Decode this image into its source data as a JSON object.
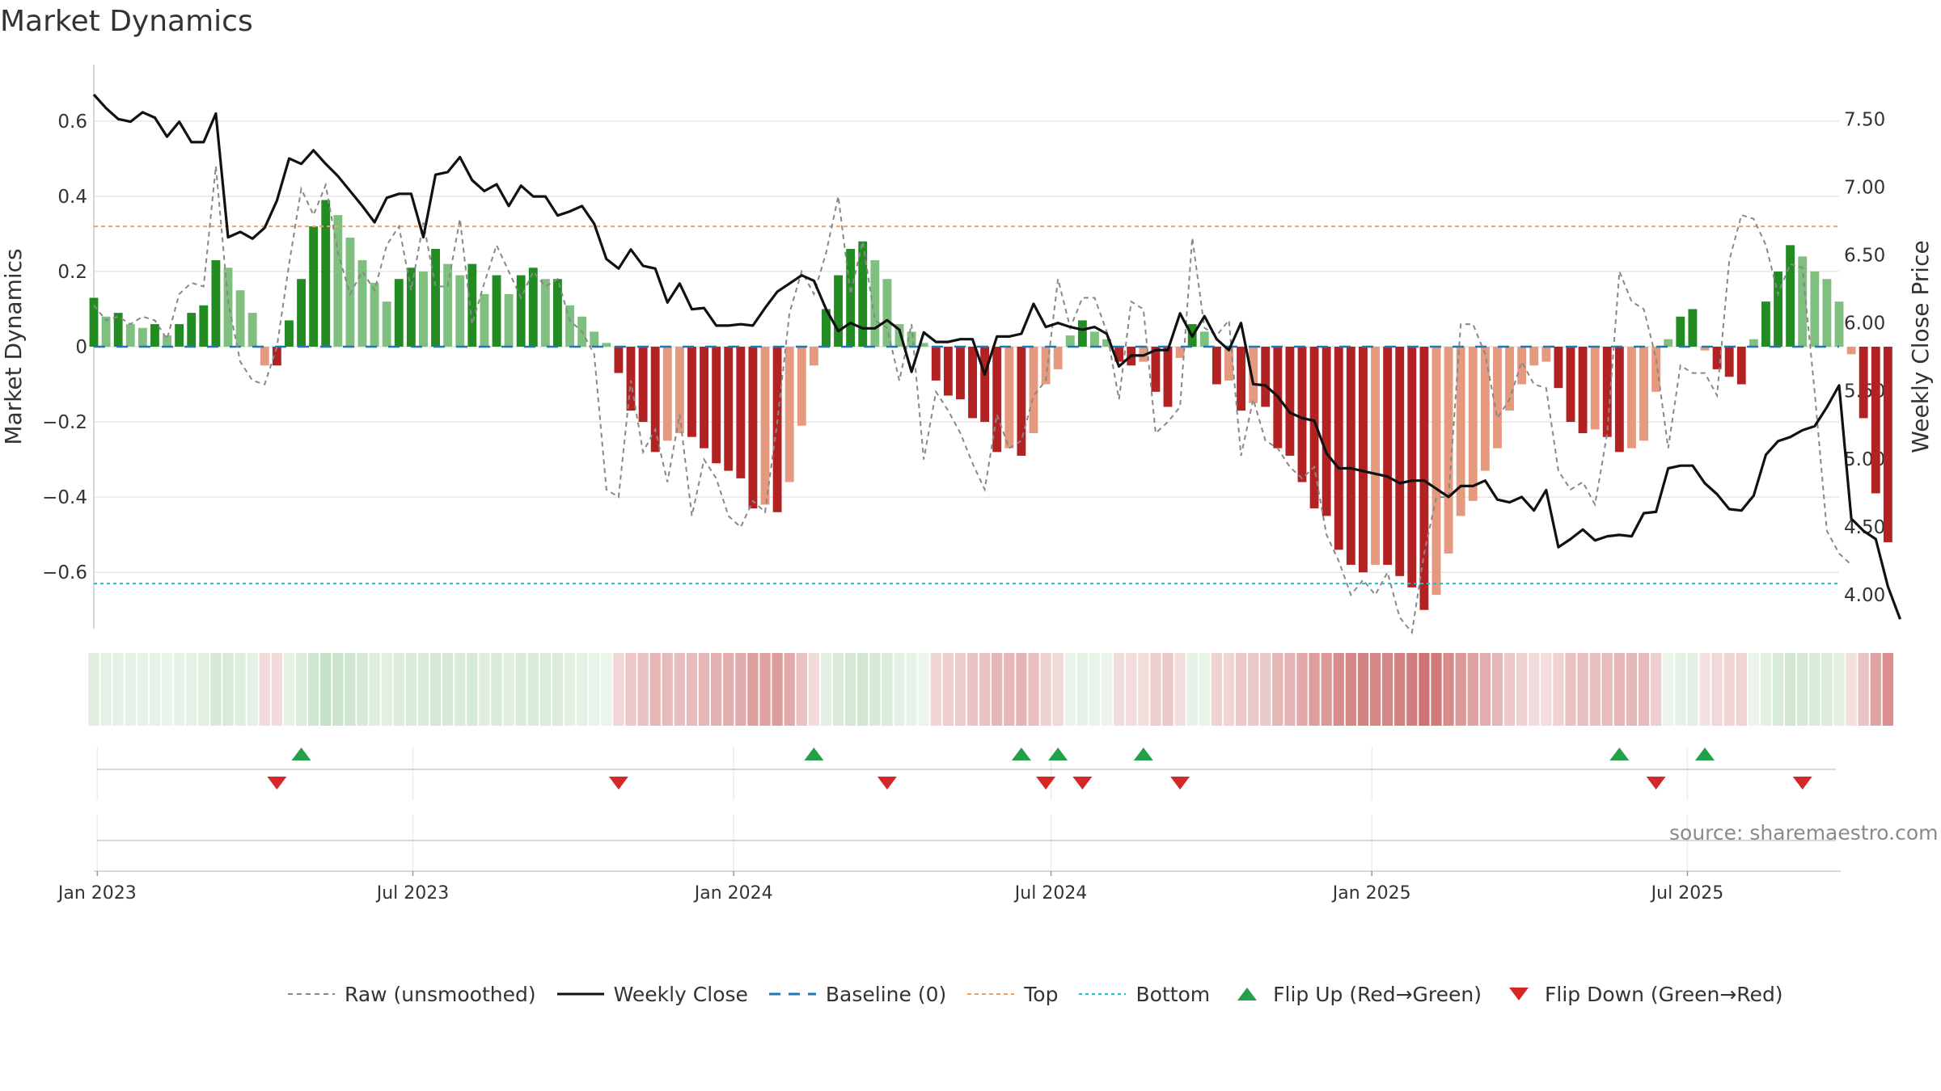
{
  "title": "Market Dynamics",
  "source": "source: sharemaestro.com",
  "legend": [
    {
      "key": "raw",
      "label": "Raw (unsmoothed)",
      "color": "#888888"
    },
    {
      "key": "close",
      "label": "Weekly Close",
      "color": "#111111"
    },
    {
      "key": "baseline",
      "label": "Baseline (0)",
      "color": "#1f77b4"
    },
    {
      "key": "top",
      "label": "Top",
      "color": "#f0a060"
    },
    {
      "key": "bottom",
      "label": "Bottom",
      "color": "#17becf"
    },
    {
      "key": "flipup",
      "label": "Flip Up (Red→Green)",
      "color": "#22a04a"
    },
    {
      "key": "flipdown",
      "label": "Flip Down (Green→Red)",
      "color": "#d62728"
    }
  ],
  "chart_data": {
    "type": "bar",
    "ylabel": "Market Dynamics",
    "ylabel_right": "Weekly Close Price",
    "ylim": [
      -0.75,
      0.75
    ],
    "ylim_right": [
      3.75,
      7.9
    ],
    "yticks": [
      0.6,
      0.4,
      0.2,
      0,
      -0.2,
      -0.4,
      -0.6
    ],
    "ytick_labels": [
      "0.6",
      "0.4",
      "0.2",
      "0",
      "−0.2",
      "−0.4",
      "−0.6"
    ],
    "yticks_right": [
      7.5,
      7.0,
      6.5,
      6.0,
      5.5,
      5.0,
      4.5,
      4.0
    ],
    "ytick_labels_right": [
      "7.50",
      "7.00",
      "6.50",
      "6.00",
      "5.50",
      "5.00",
      "4.50",
      "4.00"
    ],
    "x_start": "2022-12-30",
    "x_end": "2025-09-26",
    "x_ticks": [
      {
        "date": "2023-01-01",
        "label": "Jan 2023"
      },
      {
        "date": "2023-07-01",
        "label": "Jul 2023"
      },
      {
        "date": "2024-01-01",
        "label": "Jan 2024"
      },
      {
        "date": "2024-07-01",
        "label": "Jul 2024"
      },
      {
        "date": "2025-01-01",
        "label": "Jan 2025"
      },
      {
        "date": "2025-07-01",
        "label": "Jul 2025"
      }
    ],
    "top": 0.32,
    "bottom": -0.63,
    "baseline": 0,
    "colors": {
      "pos_strong": "#228b22",
      "pos_light": "#7fbf7f",
      "neg_strong": "#b22222",
      "neg_light": "#e59a7f"
    },
    "series": [
      {
        "name": "Market Dynamics",
        "values": [
          0.13,
          0.08,
          0.09,
          0.06,
          0.05,
          0.06,
          0.03,
          0.06,
          0.09,
          0.11,
          0.23,
          0.21,
          0.15,
          0.09,
          -0.05,
          -0.05,
          0.07,
          0.18,
          0.32,
          0.39,
          0.35,
          0.29,
          0.23,
          0.17,
          0.12,
          0.18,
          0.21,
          0.2,
          0.26,
          0.22,
          0.19,
          0.22,
          0.14,
          0.19,
          0.14,
          0.19,
          0.21,
          0.18,
          0.18,
          0.11,
          0.08,
          0.04,
          0.01,
          -0.07,
          -0.17,
          -0.2,
          -0.28,
          -0.25,
          -0.23,
          -0.24,
          -0.27,
          -0.31,
          -0.33,
          -0.35,
          -0.43,
          -0.42,
          -0.44,
          -0.36,
          -0.21,
          -0.05,
          0.1,
          0.19,
          0.26,
          0.28,
          0.23,
          0.18,
          0.06,
          0.04,
          0.01,
          -0.09,
          -0.13,
          -0.14,
          -0.19,
          -0.2,
          -0.28,
          -0.27,
          -0.29,
          -0.23,
          -0.1,
          -0.06,
          0.03,
          0.07,
          0.04,
          0.02,
          -0.04,
          -0.05,
          -0.04,
          -0.12,
          -0.16,
          -0.03,
          0.06,
          0.04,
          -0.1,
          -0.09,
          -0.17,
          -0.15,
          -0.16,
          -0.27,
          -0.29,
          -0.36,
          -0.43,
          -0.45,
          -0.54,
          -0.58,
          -0.6,
          -0.58,
          -0.58,
          -0.61,
          -0.64,
          -0.7,
          -0.66,
          -0.55,
          -0.45,
          -0.41,
          -0.33,
          -0.27,
          -0.17,
          -0.1,
          -0.05,
          -0.04,
          -0.11,
          -0.2,
          -0.23,
          -0.22,
          -0.24,
          -0.28,
          -0.27,
          -0.25,
          -0.12,
          0.02,
          0.08,
          0.1,
          -0.01,
          -0.06,
          -0.08,
          -0.1,
          0.02,
          0.12,
          0.2,
          0.27,
          0.24,
          0.2,
          0.18,
          0.12,
          -0.02,
          -0.19,
          -0.39,
          -0.52
        ]
      },
      {
        "name": "Raw (unsmoothed)",
        "values": [
          0.11,
          0.07,
          0.08,
          0.06,
          0.08,
          0.07,
          0.02,
          0.14,
          0.17,
          0.16,
          0.48,
          0.12,
          -0.04,
          -0.09,
          -0.1,
          0.0,
          0.22,
          0.42,
          0.35,
          0.43,
          0.25,
          0.14,
          0.2,
          0.15,
          0.27,
          0.32,
          0.15,
          0.33,
          0.16,
          0.16,
          0.34,
          0.06,
          0.17,
          0.27,
          0.2,
          0.13,
          0.2,
          0.16,
          0.18,
          0.07,
          0.04,
          -0.02,
          -0.38,
          -0.4,
          -0.09,
          -0.28,
          -0.22,
          -0.36,
          -0.18,
          -0.45,
          -0.3,
          -0.35,
          -0.45,
          -0.48,
          -0.41,
          -0.44,
          -0.2,
          0.09,
          0.2,
          0.14,
          0.25,
          0.4,
          0.14,
          0.28,
          0.07,
          0.05,
          -0.09,
          0.06,
          -0.3,
          -0.12,
          -0.17,
          -0.23,
          -0.31,
          -0.38,
          -0.18,
          -0.27,
          -0.25,
          -0.13,
          -0.09,
          0.18,
          0.05,
          0.13,
          0.13,
          0.04,
          -0.14,
          0.12,
          0.1,
          -0.23,
          -0.2,
          -0.16,
          0.29,
          0.05,
          0.03,
          0.07,
          -0.29,
          -0.14,
          -0.25,
          -0.27,
          -0.32,
          -0.35,
          -0.32,
          -0.5,
          -0.57,
          -0.66,
          -0.62,
          -0.66,
          -0.6,
          -0.72,
          -0.76,
          -0.55,
          -0.4,
          -0.4,
          0.06,
          0.06,
          -0.02,
          -0.19,
          -0.14,
          -0.04,
          -0.1,
          -0.11,
          -0.33,
          -0.38,
          -0.36,
          -0.42,
          -0.23,
          0.2,
          0.12,
          0.1,
          -0.03,
          -0.27,
          -0.05,
          -0.07,
          -0.07,
          -0.13,
          0.23,
          0.35,
          0.34,
          0.27,
          0.14,
          0.22,
          0.21,
          -0.12,
          -0.49,
          -0.55,
          -0.58
        ]
      },
      {
        "name": "Weekly Close",
        "values": [
          7.68,
          7.58,
          7.5,
          7.48,
          7.55,
          7.51,
          7.37,
          7.48,
          7.33,
          7.33,
          7.54,
          6.63,
          6.67,
          6.62,
          6.7,
          6.9,
          7.21,
          7.17,
          7.27,
          7.17,
          7.08,
          6.97,
          6.86,
          6.74,
          6.92,
          6.95,
          6.95,
          6.63,
          7.09,
          7.11,
          7.22,
          7.05,
          6.97,
          7.02,
          6.86,
          7.01,
          6.93,
          6.93,
          6.79,
          6.82,
          6.86,
          6.73,
          6.47,
          6.4,
          6.54,
          6.42,
          6.4,
          6.15,
          6.29,
          6.1,
          6.11,
          5.98,
          5.98,
          5.99,
          5.98,
          6.11,
          6.23,
          6.29,
          6.35,
          6.31,
          6.1,
          5.94,
          6.0,
          5.96,
          5.96,
          6.02,
          5.95,
          5.64,
          5.93,
          5.86,
          5.86,
          5.88,
          5.88,
          5.62,
          5.9,
          5.9,
          5.92,
          6.14,
          5.97,
          6.0,
          5.97,
          5.95,
          5.97,
          5.92,
          5.68,
          5.76,
          5.76,
          5.8,
          5.8,
          6.07,
          5.9,
          6.05,
          5.88,
          5.8,
          6.0,
          5.55,
          5.54,
          5.46,
          5.34,
          5.3,
          5.28,
          5.04,
          4.93,
          4.93,
          4.91,
          4.89,
          4.87,
          4.82,
          4.84,
          4.84,
          4.78,
          4.72,
          4.8,
          4.8,
          4.84,
          4.7,
          4.68,
          4.72,
          4.62,
          4.77,
          4.35,
          4.41,
          4.48,
          4.4,
          4.43,
          4.44,
          4.43,
          4.6,
          4.61,
          4.93,
          4.95,
          4.95,
          4.82,
          4.74,
          4.63,
          4.62,
          4.73,
          5.03,
          5.13,
          5.16,
          5.21,
          5.24,
          5.38,
          5.54,
          4.56,
          4.47,
          4.41,
          4.06,
          3.82
        ]
      }
    ],
    "flip_up": [
      "2023-04-28",
      "2024-02-16",
      "2024-06-14",
      "2024-07-05",
      "2024-08-23",
      "2025-05-23",
      "2025-07-11"
    ],
    "flip_down": [
      "2023-04-14",
      "2023-10-27",
      "2024-03-29",
      "2024-06-28",
      "2024-07-19",
      "2024-09-13",
      "2025-06-13",
      "2025-09-05"
    ]
  }
}
